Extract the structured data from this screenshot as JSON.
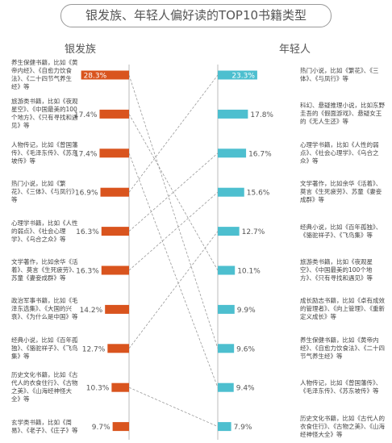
{
  "chart_data": {
    "type": "bar",
    "title": "银发族、年轻人偏好读的TOP10书籍类型",
    "series": [
      {
        "name": "银发族",
        "color": "#d9541e",
        "categories": [
          "养生保健书籍，比如《黄帝内经》、《自愈力饮食法》、《二十四节气养生经》等",
          "旅游类书籍，比如《夜观星空》、《中国最美的100个地方》、《只有寻找和遇见》等",
          "人物传记，比如《曾国藩传》、《毛泽东传》、《苏东坡传》等",
          "热门小说，比如《繁花》、《三体》、《与凤行》等",
          "心理学书籍，比如《人性的弱点》、《社会心理学》、《乌合之众》等",
          "文学著作，比如余华《活着》、莫言《生死疲劳》、苏童《妻妾成群》等",
          "政治军事书籍，比如《毛泽东选集》、《大国的兴衰》、《为什么是中国》等",
          "经典小说，比如《百年孤独》、《骆驼祥子》、《飞鸟集》等",
          "历史文化书籍，比如《古代人的衣食住行》、《古物之美》、《山海经神怪大全》等",
          "玄学类书籍，比如《周易》、《老子》、《庄子》等"
        ],
        "values": [
          28.3,
          17.4,
          17.4,
          16.9,
          16.3,
          16.3,
          14.2,
          12.7,
          10.3,
          9.7
        ],
        "value_labels": [
          "28.3%",
          "17.4%",
          "17.4%",
          "16.9%",
          "16.3%",
          "16.3%",
          "14.2%",
          "12.7%",
          "10.3%",
          "9.7%"
        ]
      },
      {
        "name": "年轻人",
        "color": "#4dbfcf",
        "categories": [
          "热门小说，比如《繁花》、《三体》、《与凤行》等",
          "科幻、悬疑推理小说，比如东野圭吾的《假面游戏》、悬疑女王的《无人生还》等",
          "心理学书籍，比如《人性的弱点》、《社会心理学》、《乌合之众》等",
          "文学著作，比如余华《活着》、莫言《生死疲劳》、苏童《妻妾成群》等",
          "经典小说，比如《百年孤独》、《骆驼祥子》、《飞鸟集》等",
          "旅游类书籍，比如《夜观星空》、《中国最美的100个地方》、《只有寻找和遇见》等",
          "成长励志书籍，比如《卓有成效的管理者》、《向上管理》、《重新定义成长》等",
          "养生保健书籍，比如《黄帝内经》、《自愈力饮食法》、《二十四节气养生经》等",
          "人物传记，比如《曾国藩传》、《毛泽东传》、《苏东坡传》等",
          "历史文化书籍，比如《古代人的衣食住行》、《古物之美》、《山海经神怪大全》等"
        ],
        "values": [
          23.3,
          17.8,
          16.7,
          15.6,
          12.7,
          10.1,
          9.9,
          9.6,
          9.4,
          7.9
        ],
        "value_labels": [
          "23.3%",
          "17.8%",
          "16.7%",
          "15.6%",
          "12.7%",
          "10.1%",
          "9.9%",
          "9.6%",
          "9.4%",
          "7.9%"
        ]
      }
    ]
  }
}
